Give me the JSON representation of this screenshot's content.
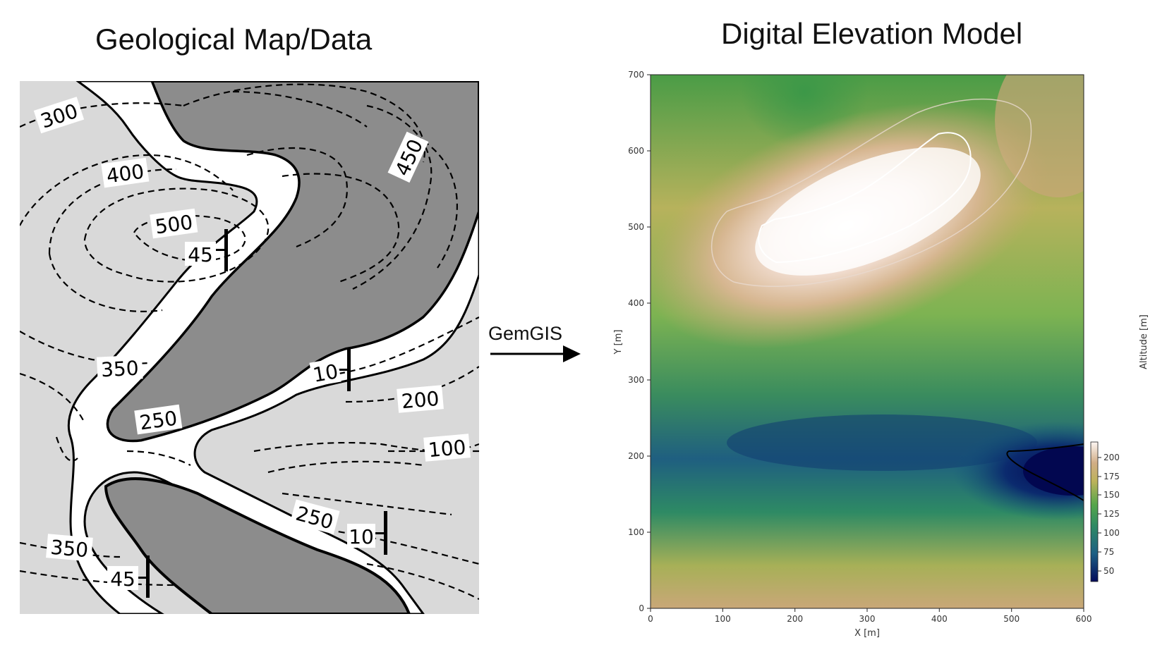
{
  "left_panel": {
    "title": "Geological Map/Data",
    "contour_labels": [
      "300",
      "400",
      "500",
      "450",
      "45",
      "350",
      "10",
      "200",
      "250",
      "100",
      "250",
      "10",
      "350",
      "45"
    ]
  },
  "arrow": {
    "label": "GemGIS"
  },
  "right_panel": {
    "title": "Digital Elevation Model",
    "xlabel": "X [m]",
    "ylabel": "Y [m]",
    "x_ticks": [
      "0",
      "100",
      "200",
      "300",
      "400",
      "500",
      "600"
    ],
    "y_ticks": [
      "0",
      "100",
      "200",
      "300",
      "400",
      "500",
      "600",
      "700"
    ],
    "colorbar_label": "Altitude [m]",
    "colorbar_ticks": [
      "200",
      "175",
      "150",
      "125",
      "100",
      "75",
      "50"
    ],
    "xlim": [
      0,
      600
    ],
    "ylim": [
      0,
      700
    ],
    "colorbar_range": [
      40,
      220
    ]
  },
  "colors": {
    "map_light": "#d9d9d9",
    "map_dark": "#8c8c8c",
    "dem_low": "#030b5a",
    "dem_mid": "#3a9a4a",
    "dem_high": "#fdf6f3"
  }
}
